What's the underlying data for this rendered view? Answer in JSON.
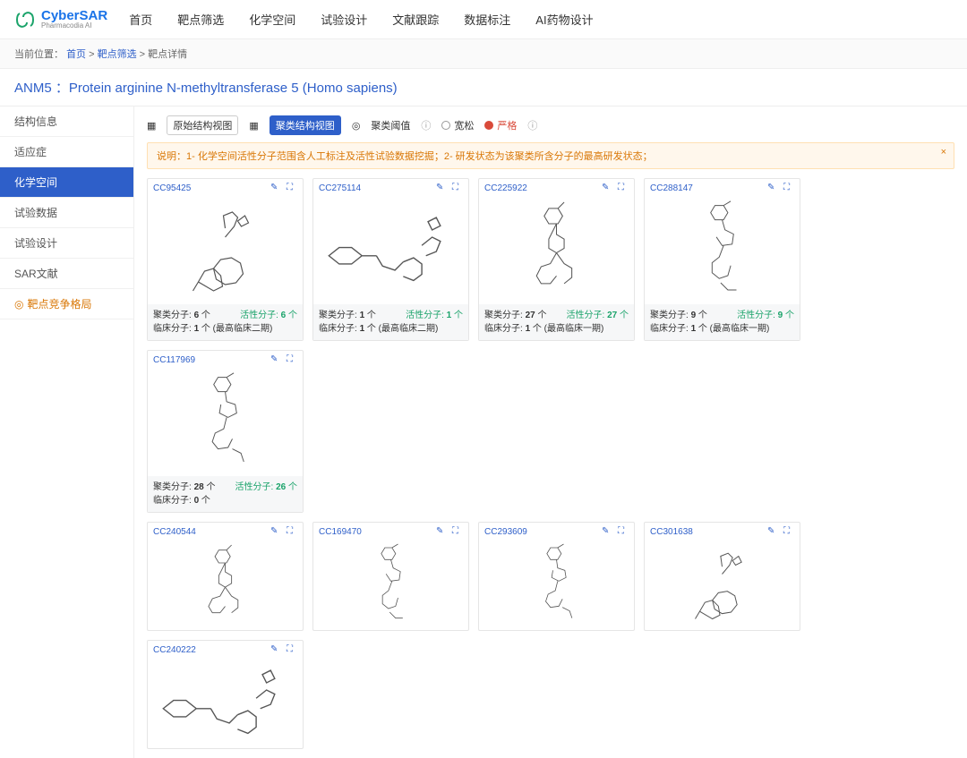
{
  "brand": {
    "main": "CyberSAR",
    "sub": "Pharmacodia AI"
  },
  "nav": [
    "首页",
    "靶点筛选",
    "化学空间",
    "试验设计",
    "文献跟踪",
    "数据标注",
    "AI药物设计"
  ],
  "breadcrumb": {
    "label": "当前位置：",
    "p0": "首页",
    "p1": "靶点筛选",
    "p2": "靶点详情"
  },
  "title": "ANM5 ：Protein arginine N-methyltransferase 5  (Homo sapiens)",
  "sidebar": [
    "结构信息",
    "适应症",
    "化学空间",
    "试验数据",
    "试验设计",
    "SAR文献"
  ],
  "sidebar_active": 2,
  "sidebar_special": "靶点竞争格局",
  "toolbar": {
    "view1": "原始结构视图",
    "view2": "聚类结构视图",
    "thresh": "聚类阈值",
    "loose": "宽松",
    "strict": "严格"
  },
  "info": "说明：1- 化学空间活性分子范围含人工标注及活性试验数据挖掘；2- 研发状态为该聚类所含分子的最高研发状态；",
  "cards": [
    {
      "id": "CC95425",
      "cluster": "6",
      "active": "6",
      "clinical": "1",
      "stage": "(最高临床二期)"
    },
    {
      "id": "CC275114",
      "cluster": "1",
      "active": "1",
      "clinical": "1",
      "stage": "(最高临床二期)"
    },
    {
      "id": "CC225922",
      "cluster": "27",
      "active": "27",
      "clinical": "1",
      "stage": "(最高临床一期)"
    },
    {
      "id": "CC288147",
      "cluster": "9",
      "active": "9",
      "clinical": "1",
      "stage": "(最高临床一期)"
    },
    {
      "id": "CC117969",
      "cluster": "28",
      "active": "26",
      "clinical": "0",
      "stage": ""
    }
  ],
  "cards2": [
    {
      "id": "CC240544"
    },
    {
      "id": "CC169470"
    },
    {
      "id": "CC293609"
    },
    {
      "id": "CC301638"
    },
    {
      "id": "CC240222"
    }
  ],
  "labels": {
    "cluster": "聚类分子:",
    "active": "活性分子:",
    "clinical": "临床分子:",
    "unit": "个"
  }
}
